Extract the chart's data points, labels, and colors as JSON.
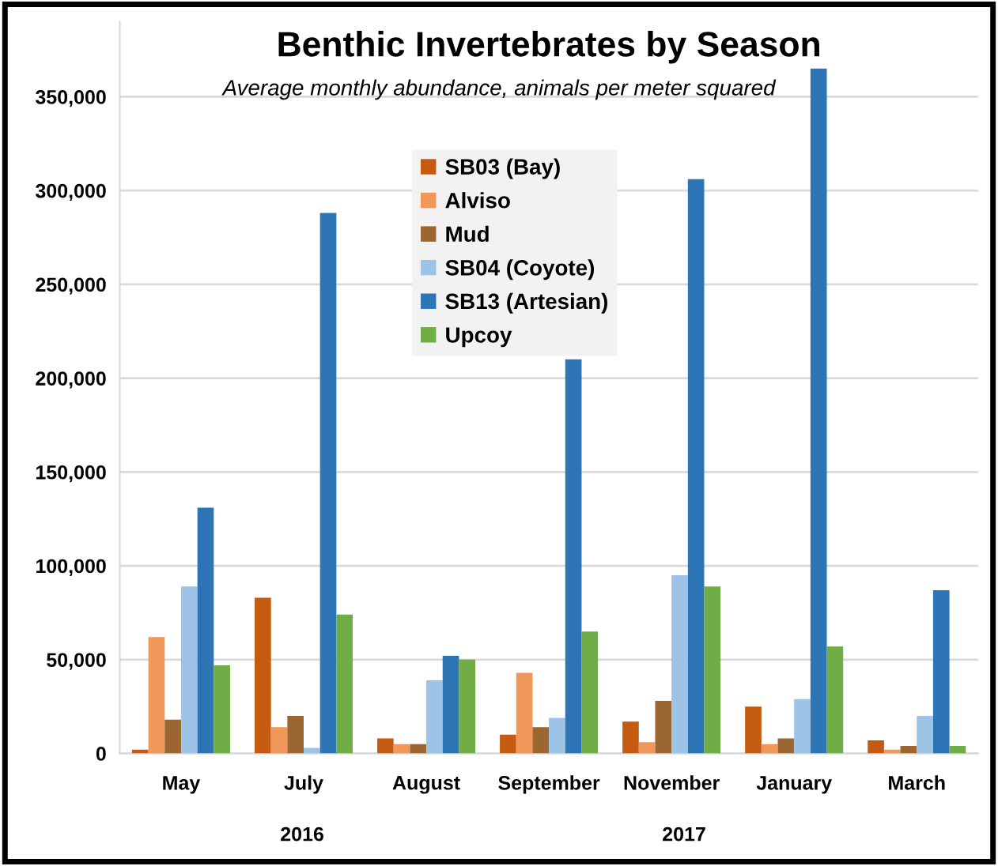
{
  "chart_data": {
    "type": "bar",
    "title": "Benthic Invertebrates by Season",
    "subtitle": "Average monthly abundance, animals per meter squared",
    "categories": [
      "May",
      "July",
      "August",
      "September",
      "November",
      "January",
      "March"
    ],
    "series": [
      {
        "name": "SB03 (Bay)",
        "color": "#c55a11",
        "values": [
          2000,
          83000,
          8000,
          10000,
          17000,
          25000,
          7000
        ]
      },
      {
        "name": "Alviso",
        "color": "#f0975a",
        "values": [
          62000,
          14000,
          5000,
          43000,
          6000,
          5000,
          2000
        ]
      },
      {
        "name": "Mud",
        "color": "#9c6630",
        "values": [
          18000,
          20000,
          5000,
          14000,
          28000,
          8000,
          4000
        ]
      },
      {
        "name": "SB04 (Coyote)",
        "color": "#9dc3e6",
        "values": [
          89000,
          3000,
          39000,
          19000,
          95000,
          29000,
          20000
        ]
      },
      {
        "name": "SB13 (Artesian)",
        "color": "#2e75b6",
        "values": [
          131000,
          288000,
          52000,
          210000,
          306000,
          365000,
          87000
        ]
      },
      {
        "name": "Upcoy",
        "color": "#70ad47",
        "values": [
          47000,
          74000,
          50000,
          65000,
          89000,
          57000,
          4000
        ]
      }
    ],
    "ylim": [
      0,
      390000
    ],
    "yticks": [
      {
        "value": 0,
        "label": "0"
      },
      {
        "value": 50000,
        "label": "50,000"
      },
      {
        "value": 100000,
        "label": "100,000"
      },
      {
        "value": 150000,
        "label": "150,000"
      },
      {
        "value": 200000,
        "label": "200,000"
      },
      {
        "value": 250000,
        "label": "250,000"
      },
      {
        "value": 300000,
        "label": "300,000"
      },
      {
        "value": 350000,
        "label": "350,000"
      }
    ],
    "grid": "y",
    "legend": "top",
    "annotations": [
      "2016",
      "2017"
    ]
  }
}
